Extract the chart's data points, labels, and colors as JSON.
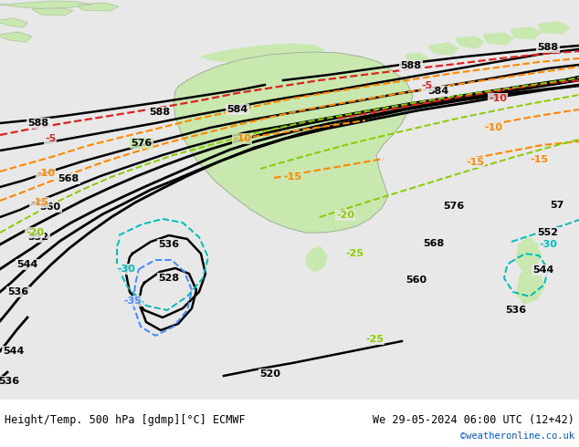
{
  "title_left": "Height/Temp. 500 hPa [gdmp][°C] ECMWF",
  "title_right": "We 29-05-2024 06:00 UTC (12+42)",
  "watermark": "©weatheronline.co.uk",
  "bg_color": "#e8e8e8",
  "land_color": "#c8e8b0",
  "ocean_color": "#d8d8d8",
  "contour_black_color": "#000000",
  "contour_red_color": "#dd2222",
  "contour_orange_color": "#ff8800",
  "contour_green_color": "#88cc00",
  "contour_cyan_color": "#00bbbb",
  "contour_blue_color": "#4488ff",
  "text_color": "#000000",
  "watermark_color": "#0055cc",
  "bottom_bar_color": "#ffffff",
  "fig_width": 6.34,
  "fig_height": 4.9,
  "dpi": 100
}
